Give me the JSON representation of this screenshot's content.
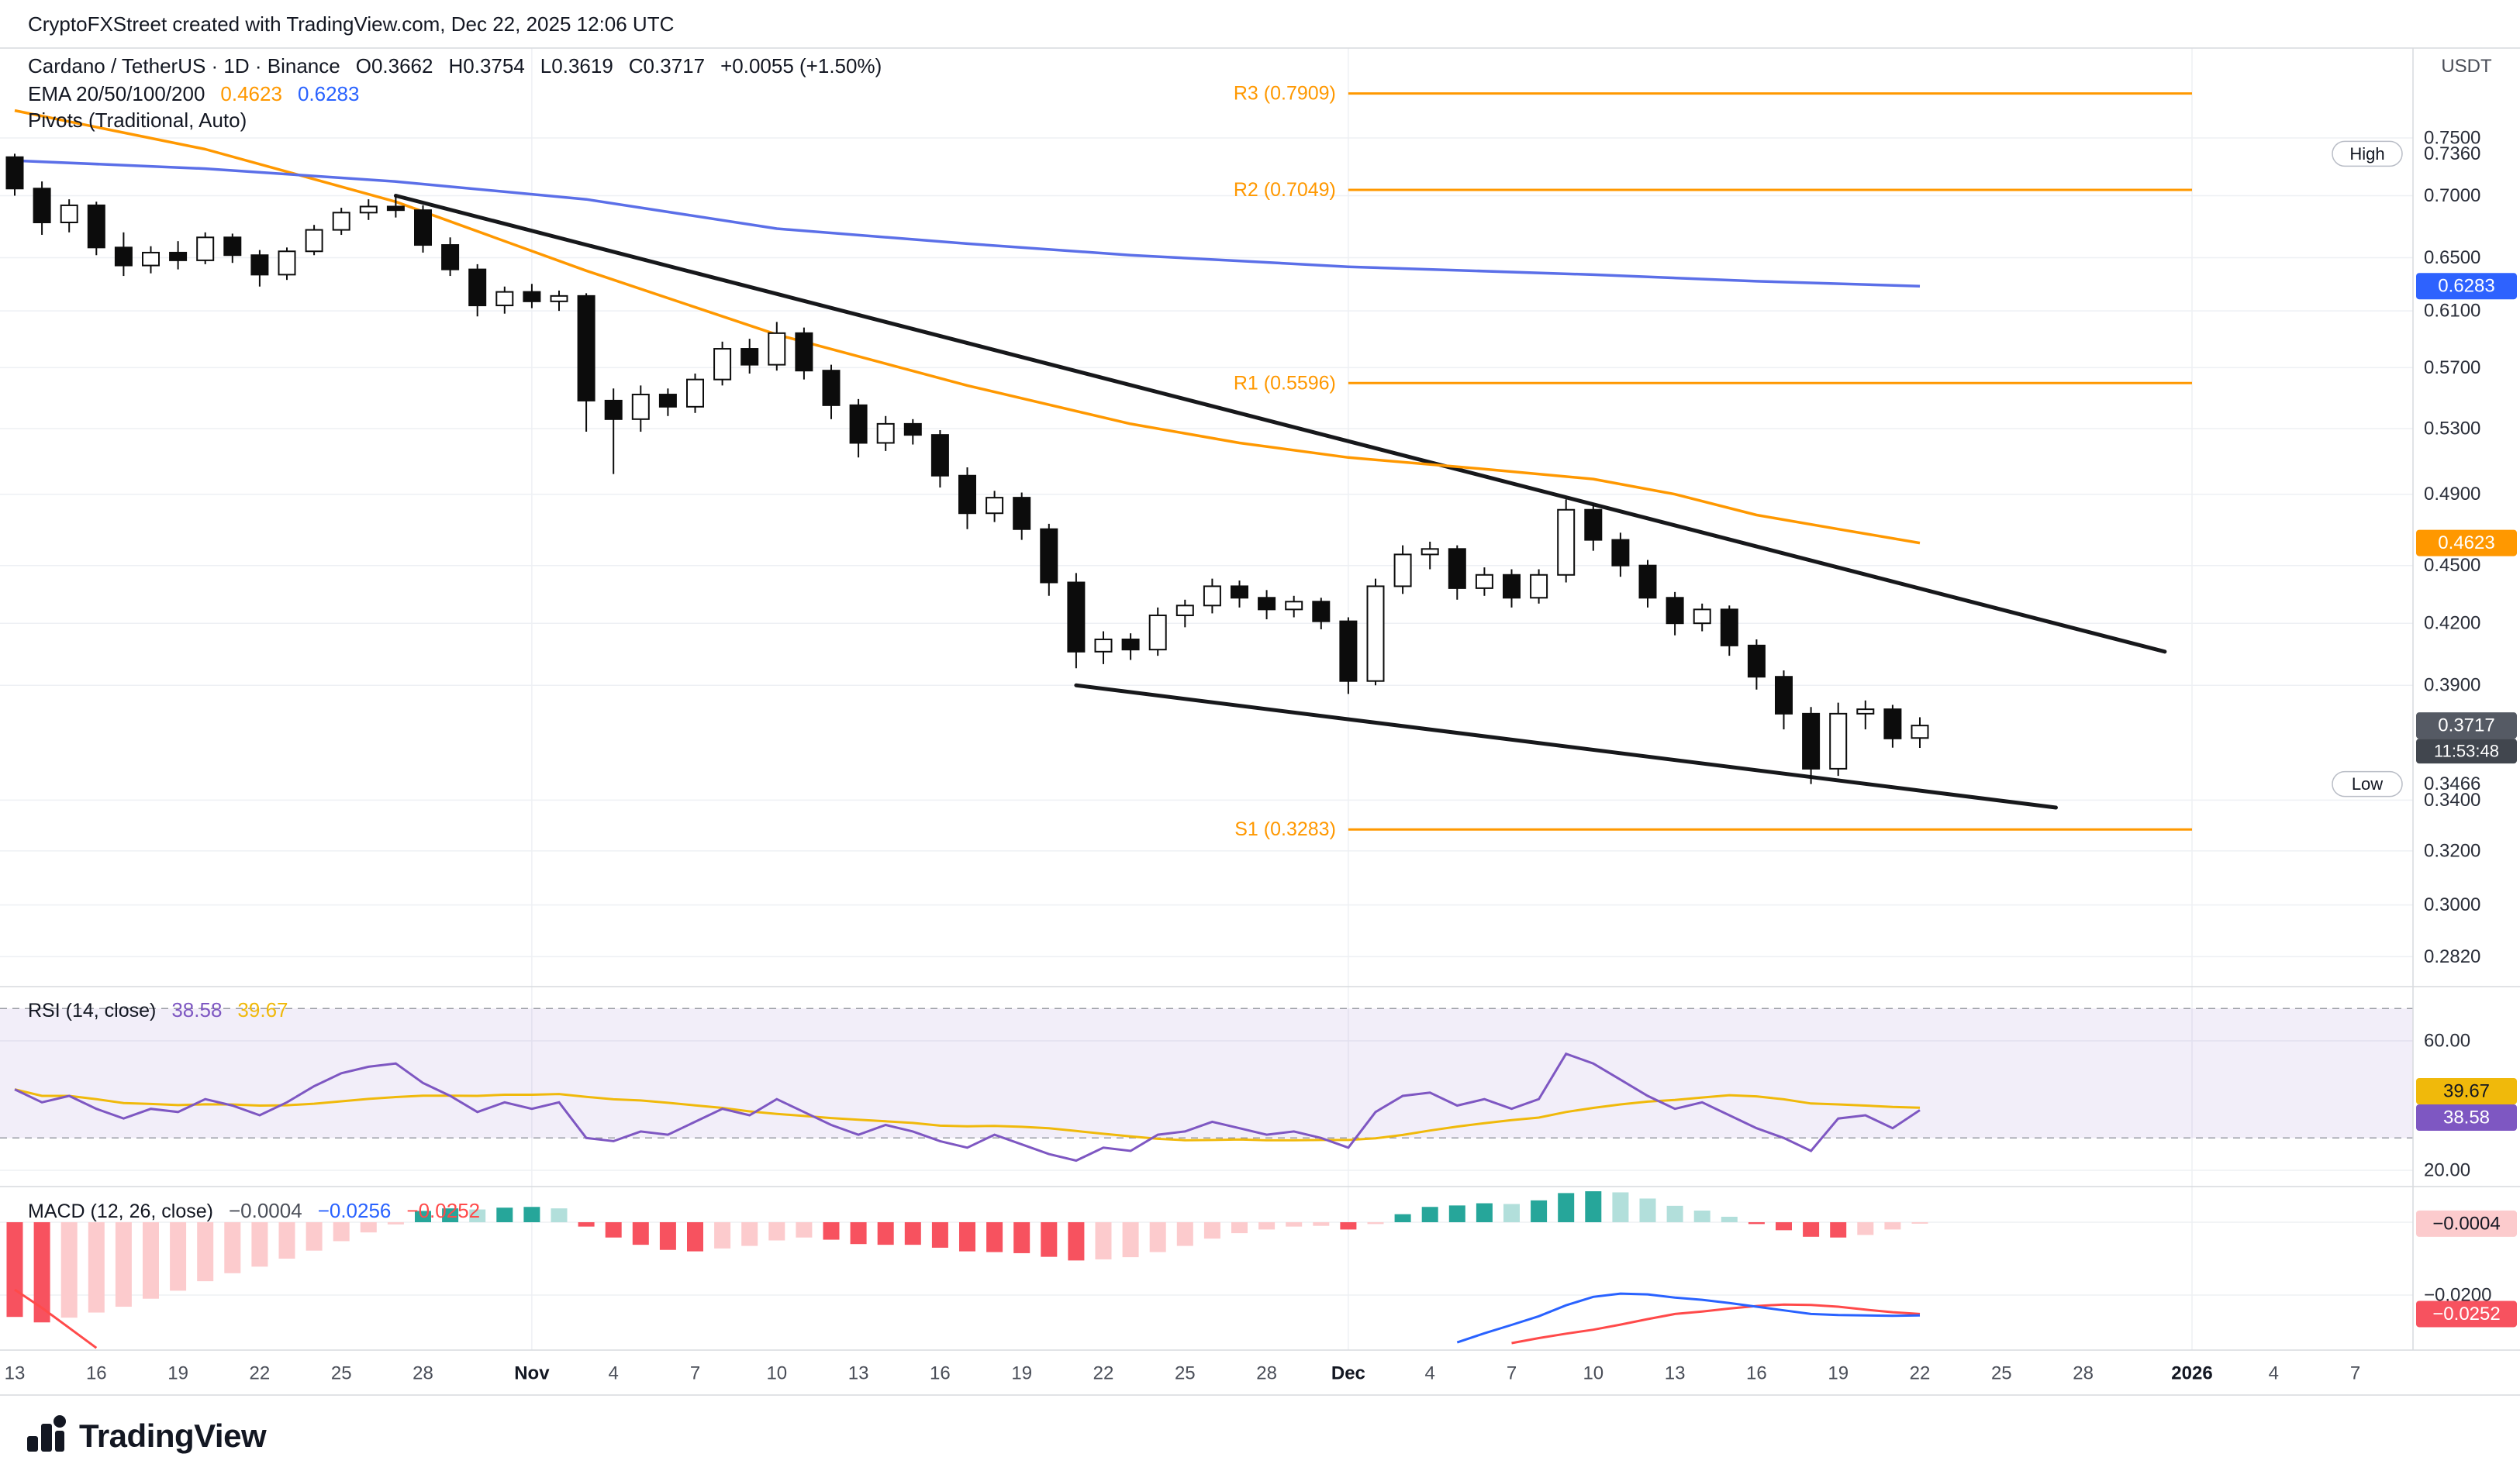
{
  "attribution": "CryptoFXStreet created with TradingView.com, Dec 22, 2025 12:06 UTC",
  "header": {
    "symbol_title": "Cardano / TetherUS · 1D · Binance",
    "ohlc": {
      "open": "O0.3662",
      "high": "H0.3754",
      "low": "L0.3619",
      "close": "C0.3717",
      "change": "+0.0055 (+1.50%)"
    },
    "ema_label": "EMA 20/50/100/200",
    "ema_values": {
      "orange": "0.4623",
      "blue": "0.6283"
    },
    "pivots_label": "Pivots (Traditional, Auto)",
    "currency_label": "USDT"
  },
  "rsi_legend": {
    "label": "RSI (14, close)",
    "value_purple": "38.58",
    "value_yellow": "39.67"
  },
  "macd_legend": {
    "label": "MACD (12, 26, close)",
    "value_hist": "−0.0004",
    "value_macd": "−0.0256",
    "value_signal": "−0.0252"
  },
  "footer": {
    "logo_text": "TradingView"
  },
  "colors": {
    "background": "#ffffff",
    "text_dark": "#131722",
    "text_gray": "#4a4e58",
    "axis_text": "#2a2e39",
    "grid": "#eef0f4",
    "separator": "#d7dade",
    "candle_up_fill": "#ffffff",
    "candle_down_fill": "#0c0c0c",
    "candle_stroke": "#0c0c0c",
    "ema_blue": "#5b6fe8",
    "ema_blue_badge": "#2e62fe",
    "ema_orange": "#ff9800",
    "pivot_orange": "#ff9800",
    "trendline_black": "#17181b",
    "rsi_purple": "#7e57c2",
    "rsi_yellow": "#f0b90b",
    "rsi_band_fill": "rgba(126,87,194,0.10)",
    "rsi_band_border": "#9b9ea6",
    "macd_pos": "#26a69a",
    "macd_pos_light": "#b2dfdb",
    "macd_neg": "#f7525f",
    "macd_neg_light": "#fccbcd",
    "macd_blue": "#2962ff",
    "macd_signal_red": "#ff4a4a",
    "last_price_badge": "#555a64",
    "countdown_badge": "#41464e",
    "hist_badge_bg": "#fccbcd",
    "badge_text_light": "#ffffff"
  },
  "chart_data": {
    "type": "candlestick",
    "title": "Cardano / TetherUS",
    "interval": "1D",
    "exchange": "Binance",
    "scale": "logarithmic",
    "first_candle_date": "Oct 13",
    "last_candle_date": "Dec 22",
    "x_axis": {
      "labels": [
        {
          "d": 0,
          "t": "13"
        },
        {
          "d": 3,
          "t": "16"
        },
        {
          "d": 6,
          "t": "19"
        },
        {
          "d": 9,
          "t": "22"
        },
        {
          "d": 12,
          "t": "25"
        },
        {
          "d": 15,
          "t": "28"
        },
        {
          "d": 19,
          "t": "Nov",
          "b": 1
        },
        {
          "d": 22,
          "t": "4"
        },
        {
          "d": 25,
          "t": "7"
        },
        {
          "d": 28,
          "t": "10"
        },
        {
          "d": 31,
          "t": "13"
        },
        {
          "d": 34,
          "t": "16"
        },
        {
          "d": 37,
          "t": "19"
        },
        {
          "d": 40,
          "t": "22"
        },
        {
          "d": 43,
          "t": "25"
        },
        {
          "d": 46,
          "t": "28"
        },
        {
          "d": 49,
          "t": "Dec",
          "b": 1
        },
        {
          "d": 52,
          "t": "4"
        },
        {
          "d": 55,
          "t": "7"
        },
        {
          "d": 58,
          "t": "10"
        },
        {
          "d": 61,
          "t": "13"
        },
        {
          "d": 64,
          "t": "16"
        },
        {
          "d": 67,
          "t": "19"
        },
        {
          "d": 70,
          "t": "22"
        },
        {
          "d": 73,
          "t": "25"
        },
        {
          "d": 76,
          "t": "28"
        },
        {
          "d": 80,
          "t": "2026",
          "b": 1
        },
        {
          "d": 83,
          "t": "4"
        },
        {
          "d": 86,
          "t": "7"
        }
      ],
      "month_gridlines_d": [
        19,
        49,
        80
      ]
    },
    "price_axis": {
      "tick_labels": [
        0.75,
        0.7,
        0.65,
        0.61,
        0.57,
        0.53,
        0.49,
        0.45,
        0.42,
        0.39,
        0.34,
        0.32,
        0.3,
        0.282
      ],
      "high_marker": 0.736,
      "low_marker": 0.3466,
      "last_price": 0.3717,
      "countdown": "11:53:48",
      "ema_badge_blue": 0.6283,
      "ema_badge_orange": 0.4623
    },
    "candles": [
      [
        0.733,
        0.736,
        0.7,
        0.706
      ],
      [
        0.706,
        0.712,
        0.668,
        0.678
      ],
      [
        0.678,
        0.697,
        0.67,
        0.692
      ],
      [
        0.692,
        0.695,
        0.652,
        0.658
      ],
      [
        0.658,
        0.67,
        0.636,
        0.644
      ],
      [
        0.644,
        0.659,
        0.638,
        0.654
      ],
      [
        0.654,
        0.663,
        0.641,
        0.648
      ],
      [
        0.648,
        0.67,
        0.645,
        0.666
      ],
      [
        0.666,
        0.669,
        0.646,
        0.652
      ],
      [
        0.652,
        0.656,
        0.628,
        0.637
      ],
      [
        0.637,
        0.658,
        0.633,
        0.655
      ],
      [
        0.655,
        0.676,
        0.652,
        0.672
      ],
      [
        0.672,
        0.69,
        0.668,
        0.686
      ],
      [
        0.686,
        0.697,
        0.68,
        0.691
      ],
      [
        0.691,
        0.7,
        0.682,
        0.688
      ],
      [
        0.688,
        0.692,
        0.654,
        0.66
      ],
      [
        0.66,
        0.666,
        0.636,
        0.641
      ],
      [
        0.641,
        0.645,
        0.606,
        0.614
      ],
      [
        0.614,
        0.628,
        0.608,
        0.624
      ],
      [
        0.624,
        0.63,
        0.612,
        0.617
      ],
      [
        0.617,
        0.625,
        0.61,
        0.621
      ],
      [
        0.621,
        0.623,
        0.528,
        0.548
      ],
      [
        0.548,
        0.556,
        0.502,
        0.536
      ],
      [
        0.536,
        0.558,
        0.528,
        0.552
      ],
      [
        0.552,
        0.556,
        0.538,
        0.544
      ],
      [
        0.544,
        0.566,
        0.54,
        0.562
      ],
      [
        0.562,
        0.588,
        0.558,
        0.583
      ],
      [
        0.583,
        0.59,
        0.566,
        0.572
      ],
      [
        0.572,
        0.602,
        0.568,
        0.594
      ],
      [
        0.594,
        0.598,
        0.562,
        0.568
      ],
      [
        0.568,
        0.572,
        0.536,
        0.545
      ],
      [
        0.545,
        0.549,
        0.512,
        0.521
      ],
      [
        0.521,
        0.538,
        0.516,
        0.533
      ],
      [
        0.533,
        0.536,
        0.52,
        0.526
      ],
      [
        0.526,
        0.529,
        0.494,
        0.501
      ],
      [
        0.501,
        0.506,
        0.47,
        0.479
      ],
      [
        0.479,
        0.492,
        0.474,
        0.488
      ],
      [
        0.488,
        0.491,
        0.464,
        0.47
      ],
      [
        0.47,
        0.473,
        0.434,
        0.441
      ],
      [
        0.441,
        0.446,
        0.398,
        0.406
      ],
      [
        0.406,
        0.416,
        0.4,
        0.412
      ],
      [
        0.412,
        0.415,
        0.402,
        0.407
      ],
      [
        0.407,
        0.428,
        0.404,
        0.424
      ],
      [
        0.424,
        0.432,
        0.418,
        0.429
      ],
      [
        0.429,
        0.443,
        0.425,
        0.439
      ],
      [
        0.439,
        0.442,
        0.428,
        0.433
      ],
      [
        0.433,
        0.437,
        0.422,
        0.427
      ],
      [
        0.427,
        0.434,
        0.423,
        0.431
      ],
      [
        0.431,
        0.433,
        0.417,
        0.421
      ],
      [
        0.421,
        0.423,
        0.386,
        0.392
      ],
      [
        0.392,
        0.443,
        0.39,
        0.439
      ],
      [
        0.439,
        0.461,
        0.435,
        0.456
      ],
      [
        0.456,
        0.463,
        0.448,
        0.459
      ],
      [
        0.459,
        0.461,
        0.432,
        0.438
      ],
      [
        0.438,
        0.449,
        0.434,
        0.445
      ],
      [
        0.445,
        0.448,
        0.428,
        0.433
      ],
      [
        0.433,
        0.448,
        0.43,
        0.445
      ],
      [
        0.445,
        0.487,
        0.441,
        0.481
      ],
      [
        0.481,
        0.484,
        0.458,
        0.464
      ],
      [
        0.464,
        0.468,
        0.444,
        0.45
      ],
      [
        0.45,
        0.453,
        0.428,
        0.433
      ],
      [
        0.433,
        0.436,
        0.414,
        0.42
      ],
      [
        0.42,
        0.43,
        0.416,
        0.427
      ],
      [
        0.427,
        0.429,
        0.404,
        0.409
      ],
      [
        0.409,
        0.412,
        0.388,
        0.394
      ],
      [
        0.394,
        0.397,
        0.37,
        0.377
      ],
      [
        0.377,
        0.38,
        0.3466,
        0.353
      ],
      [
        0.353,
        0.382,
        0.35,
        0.377
      ],
      [
        0.377,
        0.383,
        0.37,
        0.379
      ],
      [
        0.379,
        0.381,
        0.362,
        0.366
      ],
      [
        0.3662,
        0.3754,
        0.3619,
        0.3717
      ]
    ],
    "ema_lines": {
      "blue_points": [
        [
          0,
          0.73
        ],
        [
          7,
          0.723
        ],
        [
          14,
          0.712
        ],
        [
          21,
          0.697
        ],
        [
          28,
          0.673
        ],
        [
          35,
          0.661
        ],
        [
          41,
          0.652
        ],
        [
          49,
          0.643
        ],
        [
          58,
          0.637
        ],
        [
          64,
          0.632
        ],
        [
          70,
          0.6283
        ]
      ],
      "orange_points": [
        [
          0,
          0.775
        ],
        [
          7,
          0.74
        ],
        [
          14,
          0.695
        ],
        [
          21,
          0.64
        ],
        [
          28,
          0.593
        ],
        [
          35,
          0.558
        ],
        [
          41,
          0.533
        ],
        [
          45,
          0.521
        ],
        [
          49,
          0.512
        ],
        [
          54,
          0.505
        ],
        [
          58,
          0.499
        ],
        [
          61,
          0.49
        ],
        [
          64,
          0.478
        ],
        [
          67,
          0.47
        ],
        [
          70,
          0.4623
        ]
      ]
    },
    "pivot_levels": [
      {
        "label": "R3 (0.7909)",
        "value": 0.7909
      },
      {
        "label": "R2 (0.7049)",
        "value": 0.7049
      },
      {
        "label": "R1 (0.5596)",
        "value": 0.5596
      },
      {
        "label": "S1 (0.3283)",
        "value": 0.3283
      }
    ],
    "pivot_span_d": [
      49,
      80
    ],
    "trendlines": [
      {
        "from": [
          14,
          0.7
        ],
        "to": [
          79,
          0.406
        ]
      },
      {
        "from": [
          39,
          0.39
        ],
        "to": [
          75,
          0.337
        ]
      }
    ],
    "rsi": {
      "label": "RSI (14, close)",
      "values": [
        45,
        41,
        43,
        39,
        36,
        39,
        38,
        42,
        40,
        37,
        41,
        46,
        50,
        52,
        53,
        47,
        43,
        38,
        41,
        39,
        41,
        30,
        29,
        32,
        31,
        35,
        39,
        37,
        42,
        38,
        34,
        31,
        34,
        32,
        29,
        27,
        31,
        28,
        25,
        23,
        27,
        26,
        31,
        32,
        35,
        33,
        31,
        32,
        30,
        27,
        38,
        43,
        44,
        40,
        42,
        39,
        42,
        56,
        53,
        48,
        43,
        39,
        41,
        37,
        33,
        30,
        26,
        36,
        37,
        33,
        38.58
      ],
      "last": 38.58,
      "ma_last": 39.67,
      "band": [
        30,
        70
      ],
      "axis_ticks": [
        60,
        20
      ]
    },
    "macd": {
      "label": "MACD (12, 26, close)",
      "hist": [
        -0.026,
        -0.0275,
        -0.0262,
        -0.0248,
        -0.0232,
        -0.021,
        -0.0188,
        -0.0162,
        -0.014,
        -0.0122,
        -0.01,
        -0.0078,
        -0.0052,
        -0.0028,
        -0.0006,
        0.0031,
        0.0038,
        0.0035,
        0.004,
        0.0042,
        0.0038,
        -0.0012,
        -0.0042,
        -0.0062,
        -0.0076,
        -0.008,
        -0.0072,
        -0.0065,
        -0.005,
        -0.0042,
        -0.0048,
        -0.006,
        -0.0062,
        -0.0062,
        -0.007,
        -0.008,
        -0.0082,
        -0.0085,
        -0.0095,
        -0.0105,
        -0.0102,
        -0.0096,
        -0.0082,
        -0.0065,
        -0.0045,
        -0.003,
        -0.002,
        -0.0012,
        -0.001,
        -0.002,
        -0.0005,
        0.0022,
        0.0042,
        0.0046,
        0.0052,
        0.005,
        0.006,
        0.008,
        0.0085,
        0.0082,
        0.0065,
        0.0045,
        0.0032,
        0.0015,
        -0.0005,
        -0.0022,
        -0.004,
        -0.0042,
        -0.0035,
        -0.002,
        -0.0004
      ],
      "macd_line": [
        [
          53,
          -0.033
        ],
        [
          54,
          -0.0305
        ],
        [
          55,
          -0.0282
        ],
        [
          56,
          -0.0258
        ],
        [
          57,
          -0.0228
        ],
        [
          58,
          -0.0205
        ],
        [
          59,
          -0.0196
        ],
        [
          60,
          -0.0198
        ],
        [
          61,
          -0.0207
        ],
        [
          62,
          -0.0213
        ],
        [
          63,
          -0.0222
        ],
        [
          64,
          -0.0232
        ],
        [
          65,
          -0.0242
        ],
        [
          66,
          -0.0252
        ],
        [
          67,
          -0.0255
        ],
        [
          68,
          -0.0256
        ],
        [
          69,
          -0.0257
        ],
        [
          70,
          -0.0256
        ]
      ],
      "signal_line": [
        [
          55,
          -0.0332
        ],
        [
          56,
          -0.0318
        ],
        [
          57,
          -0.0306
        ],
        [
          58,
          -0.0295
        ],
        [
          59,
          -0.0281
        ],
        [
          60,
          -0.0266
        ],
        [
          61,
          -0.0252
        ],
        [
          62,
          -0.0245
        ],
        [
          63,
          -0.0237
        ],
        [
          64,
          -0.023
        ],
        [
          65,
          -0.0226
        ],
        [
          66,
          -0.0227
        ],
        [
          67,
          -0.0232
        ],
        [
          68,
          -0.024
        ],
        [
          69,
          -0.0247
        ],
        [
          70,
          -0.0252
        ]
      ],
      "signal_line_left": [
        [
          0,
          -0.0185
        ],
        [
          1,
          -0.0235
        ],
        [
          2,
          -0.029
        ],
        [
          3,
          -0.0345
        ]
      ],
      "axis_tick": -0.02,
      "last_hist": -0.0004,
      "last_macd": -0.0256,
      "last_signal": -0.0252
    }
  }
}
